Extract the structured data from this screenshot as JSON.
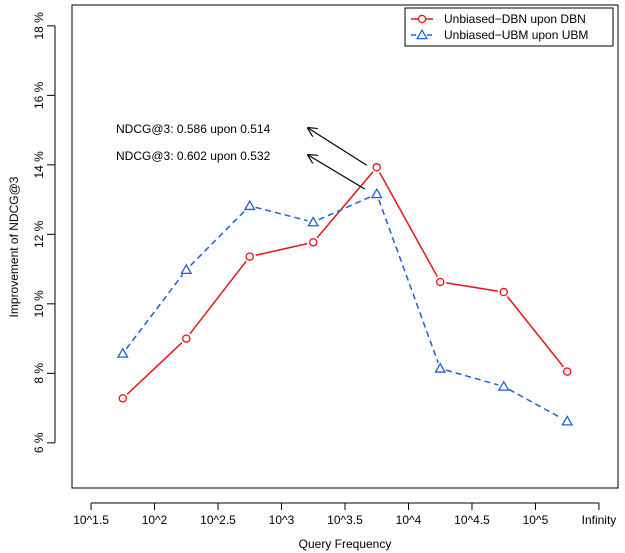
{
  "chart_data": {
    "type": "line",
    "xlabel": "Query Frequency",
    "ylabel": "Improvement of NDCG@3",
    "x_ticks": [
      {
        "pos": 1.5,
        "label": "10^1.5"
      },
      {
        "pos": 2.0,
        "label": "10^2"
      },
      {
        "pos": 2.5,
        "label": "10^2.5"
      },
      {
        "pos": 3.0,
        "label": "10^3"
      },
      {
        "pos": 3.5,
        "label": "10^3.5"
      },
      {
        "pos": 4.0,
        "label": "10^4"
      },
      {
        "pos": 4.5,
        "label": "10^4.5"
      },
      {
        "pos": 5.0,
        "label": "10^5"
      },
      {
        "pos": 5.5,
        "label": "Infinity"
      }
    ],
    "y_ticks": [
      {
        "value": 6,
        "label": "6 %"
      },
      {
        "value": 8,
        "label": "8 %"
      },
      {
        "value": 10,
        "label": "10 %"
      },
      {
        "value": 12,
        "label": "12 %"
      },
      {
        "value": 14,
        "label": "14 %"
      },
      {
        "value": 16,
        "label": "16 %"
      },
      {
        "value": 18,
        "label": "18 %"
      }
    ],
    "xlim": [
      1.35,
      5.65
    ],
    "ylim": [
      4.7,
      18.6
    ],
    "x": [
      1.75,
      2.25,
      2.75,
      3.25,
      3.75,
      4.25,
      4.75,
      5.25
    ],
    "series": [
      {
        "name": "Unbiased−DBN upon DBN",
        "color": "#e8141b",
        "marker": "circle",
        "dash": "solid",
        "values": [
          7.28,
          9.0,
          11.36,
          11.77,
          13.93,
          10.63,
          10.34,
          8.05
        ]
      },
      {
        "name": "Unbiased−UBM upon UBM",
        "color": "#1f5fd6",
        "marker": "triangle",
        "dash": "dashed",
        "values": [
          8.57,
          10.98,
          12.82,
          12.35,
          13.16,
          8.14,
          7.62,
          6.62
        ]
      }
    ],
    "annotations": [
      {
        "text": "NDCG@3: 0.586 upon 0.514",
        "series": 0,
        "point": 4
      },
      {
        "text": "NDCG@3: 0.602 upon 0.532",
        "series": 1,
        "point": 4
      }
    ],
    "legend_position": "top-right",
    "grid": false
  }
}
